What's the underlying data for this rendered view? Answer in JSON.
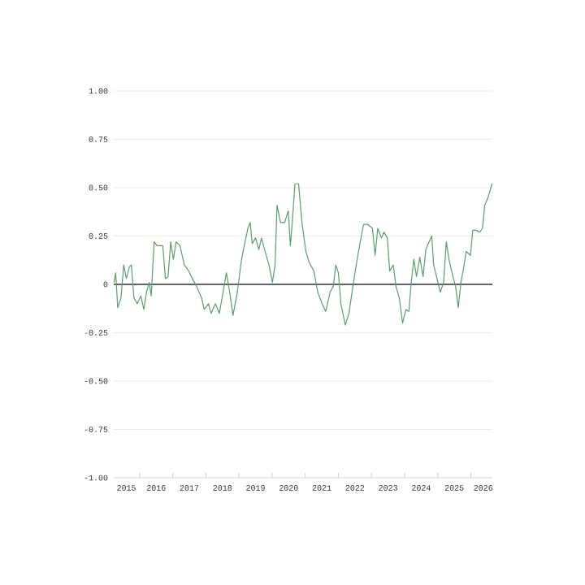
{
  "chart_data": {
    "type": "line",
    "x": [
      "2015-03-23",
      "2015-04-11",
      "2015-05-03",
      "2015-06-09",
      "2015-07-08",
      "2015-08-07",
      "2015-09-09",
      "2015-10-01",
      "2015-10-29",
      "2015-12-05",
      "2016-01-15",
      "2016-02-17",
      "2016-03-16",
      "2016-04-15",
      "2016-05-07",
      "2016-06-09",
      "2016-07-11",
      "2016-09-13",
      "2016-10-11",
      "2016-11-10",
      "2016-12-09",
      "2017-01-08",
      "2017-02-07",
      "2017-03-20",
      "2017-05-07",
      "2017-06-23",
      "2017-08-03",
      "2017-09-20",
      "2017-11-14",
      "2017-12-13",
      "2018-01-29",
      "2018-02-28",
      "2018-04-15",
      "2018-05-28",
      "2018-07-08",
      "2018-08-14",
      "2018-09-20",
      "2018-10-26",
      "2018-12-13",
      "2019-01-29",
      "2019-03-02",
      "2019-04-08",
      "2019-05-03",
      "2019-05-25",
      "2019-07-01",
      "2019-08-07",
      "2019-09-05",
      "2019-10-15",
      "2019-11-28",
      "2020-01-04",
      "2020-02-03",
      "2020-02-25",
      "2020-04-01",
      "2020-05-17",
      "2020-06-27",
      "2020-07-19",
      "2020-08-10",
      "2020-09-09",
      "2020-10-19",
      "2020-11-25",
      "2021-01-08",
      "2021-02-17",
      "2021-04-04",
      "2021-05-17",
      "2021-07-04",
      "2021-08-14",
      "2021-10-01",
      "2021-11-07",
      "2021-12-02",
      "2022-01-01",
      "2022-01-29",
      "2022-03-16",
      "2022-04-26",
      "2022-06-09",
      "2022-07-15",
      "2022-08-25",
      "2022-10-04",
      "2022-11-21",
      "2023-01-11",
      "2023-02-10",
      "2023-03-09",
      "2023-04-19",
      "2023-05-17",
      "2023-06-23",
      "2023-07-19",
      "2023-08-28",
      "2023-09-27",
      "2023-11-03",
      "2023-12-09",
      "2024-01-15",
      "2024-02-17",
      "2024-03-13",
      "2024-04-11",
      "2024-05-10",
      "2024-06-16",
      "2024-07-22",
      "2024-08-21",
      "2024-09-27",
      "2024-10-26",
      "2024-11-17",
      "2024-12-23",
      "2025-01-29",
      "2025-03-05",
      "2025-04-04",
      "2025-05-03",
      "2025-06-16",
      "2025-07-15",
      "2025-08-14",
      "2025-09-13",
      "2025-10-11",
      "2025-11-10",
      "2025-12-27",
      "2026-01-22",
      "2026-02-28",
      "2026-04-08",
      "2026-05-07",
      "2026-06-02",
      "2026-07-08",
      "2026-08-21"
    ],
    "series": [
      {
        "color": "#5a9e6a",
        "values": [
          0.01,
          0.06,
          -0.12,
          -0.07,
          0.1,
          0.03,
          0.09,
          0.1,
          -0.07,
          -0.1,
          -0.06,
          -0.13,
          -0.04,
          0.01,
          -0.06,
          0.22,
          0.2,
          0.2,
          0.03,
          0.04,
          0.22,
          0.13,
          0.22,
          0.2,
          0.1,
          0.07,
          0.03,
          -0.01,
          -0.07,
          -0.13,
          -0.1,
          -0.15,
          -0.1,
          -0.15,
          -0.04,
          0.06,
          -0.04,
          -0.16,
          -0.04,
          0.13,
          0.21,
          0.29,
          0.32,
          0.21,
          0.24,
          0.18,
          0.24,
          0.17,
          0.1,
          0.01,
          0.1,
          0.41,
          0.32,
          0.32,
          0.38,
          0.2,
          0.32,
          0.52,
          0.52,
          0.32,
          0.17,
          0.11,
          0.07,
          -0.04,
          -0.1,
          -0.14,
          -0.04,
          -0.01,
          0.1,
          0.06,
          -0.1,
          -0.21,
          -0.15,
          -0.01,
          0.1,
          0.21,
          0.31,
          0.31,
          0.29,
          0.15,
          0.29,
          0.24,
          0.27,
          0.24,
          0.07,
          0.1,
          -0.01,
          -0.07,
          -0.2,
          -0.13,
          -0.14,
          0.01,
          0.13,
          0.04,
          0.14,
          0.04,
          0.18,
          0.22,
          0.25,
          0.1,
          0.03,
          -0.04,
          0.01,
          0.22,
          0.13,
          0.04,
          -0.01,
          -0.12,
          0.01,
          0.08,
          0.17,
          0.15,
          0.28,
          0.28,
          0.27,
          0.29,
          0.41,
          0.45,
          0.52
        ]
      }
    ],
    "xlim": [
      "2015-03-20",
      "2026-08-25"
    ],
    "xticks": [
      {
        "value": "2015-08-07",
        "label": "2015"
      },
      {
        "value": "2016-01-01",
        "label": null
      },
      {
        "value": "2016-07-01",
        "label": "2016"
      },
      {
        "value": "2017-01-01",
        "label": null
      },
      {
        "value": "2017-07-01",
        "label": "2017"
      },
      {
        "value": "2018-01-01",
        "label": null
      },
      {
        "value": "2018-07-01",
        "label": "2018"
      },
      {
        "value": "2019-01-01",
        "label": null
      },
      {
        "value": "2019-07-01",
        "label": "2019"
      },
      {
        "value": "2020-01-01",
        "label": null
      },
      {
        "value": "2020-07-01",
        "label": "2020"
      },
      {
        "value": "2021-01-01",
        "label": null
      },
      {
        "value": "2021-07-01",
        "label": "2021"
      },
      {
        "value": "2022-01-01",
        "label": null
      },
      {
        "value": "2022-07-01",
        "label": "2022"
      },
      {
        "value": "2023-01-01",
        "label": null
      },
      {
        "value": "2023-07-01",
        "label": "2023"
      },
      {
        "value": "2024-01-01",
        "label": null
      },
      {
        "value": "2024-07-01",
        "label": "2024"
      },
      {
        "value": "2025-01-01",
        "label": null
      },
      {
        "value": "2025-07-01",
        "label": "2025"
      },
      {
        "value": "2026-01-01",
        "label": null
      },
      {
        "value": "2026-05-15",
        "label": "2026"
      }
    ],
    "ylim": [
      -1,
      1
    ],
    "yticks": [
      {
        "value": -1,
        "label": "-1.00"
      },
      {
        "value": -0.75,
        "label": "-0.75"
      },
      {
        "value": -0.5,
        "label": "-0.50"
      },
      {
        "value": -0.25,
        "label": "-0.25"
      },
      0,
      {
        "value": 0.25,
        "label": "0.25"
      },
      {
        "value": 0.5,
        "label": "0.50"
      },
      {
        "value": 0.75,
        "label": "0.75"
      },
      {
        "value": 1,
        "label": "1.00"
      }
    ],
    "grid": "y",
    "ref_lines": [
      {
        "axis": "y",
        "value": 0,
        "color": "#333333"
      }
    ]
  }
}
